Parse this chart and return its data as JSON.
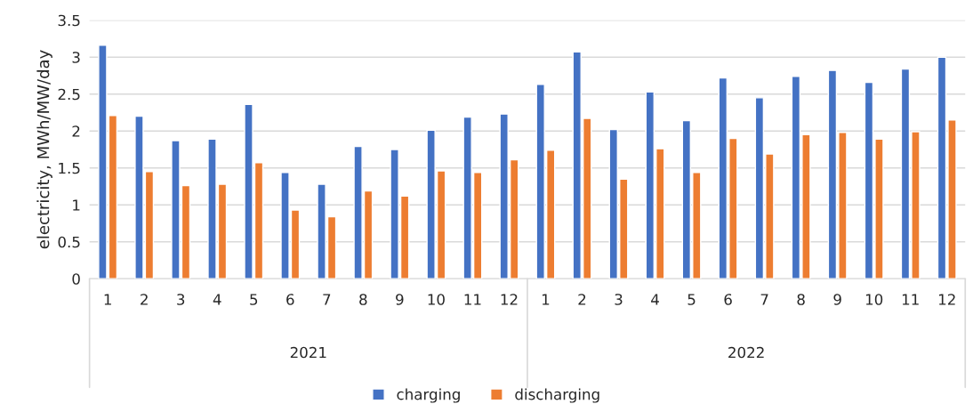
{
  "chart_data": {
    "type": "bar",
    "ylabel": "electricity, MWh/MW/day",
    "categories": [
      "1",
      "2",
      "3",
      "4",
      "5",
      "6",
      "7",
      "8",
      "9",
      "10",
      "11",
      "12",
      "1",
      "2",
      "3",
      "4",
      "5",
      "6",
      "7",
      "8",
      "9",
      "10",
      "11",
      "12"
    ],
    "series": [
      {
        "name": "charging",
        "color": "#4472c4",
        "values": [
          3.16,
          2.2,
          1.87,
          1.89,
          2.36,
          1.44,
          1.28,
          1.79,
          1.75,
          2.01,
          2.19,
          2.23,
          2.63,
          3.07,
          2.02,
          2.53,
          2.14,
          2.72,
          2.45,
          2.74,
          2.82,
          2.66,
          2.84,
          3.0
        ]
      },
      {
        "name": "discharging",
        "color": "#ed7d31",
        "values": [
          2.21,
          1.45,
          1.26,
          1.28,
          1.57,
          0.93,
          0.84,
          1.19,
          1.12,
          1.46,
          1.44,
          1.61,
          1.74,
          2.17,
          1.35,
          1.76,
          1.44,
          1.9,
          1.69,
          1.95,
          1.98,
          1.89,
          1.99,
          2.15
        ]
      }
    ],
    "annotations": [
      "2021",
      "2022"
    ],
    "ylim": [
      0,
      3.5
    ],
    "yticks": [
      0,
      0.5,
      1,
      1.5,
      2,
      2.5,
      3,
      3.5
    ],
    "grid": "y",
    "legend": "bottom"
  }
}
